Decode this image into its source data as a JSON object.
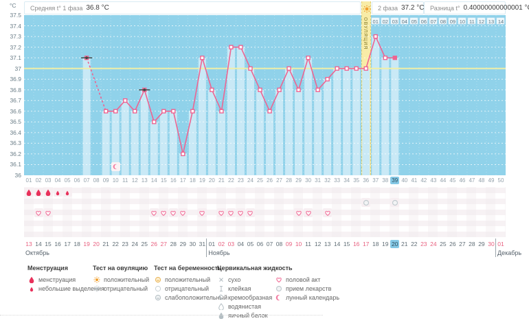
{
  "header": {
    "unit": "°C",
    "phase1_label": "Средняя t° 1 фаза",
    "phase1_value": "36.8 °C",
    "phase2_label": "2 фаза",
    "phase2_value": "37.2 °C",
    "diff_label": "Разница t°",
    "diff_value": "0.40000000000001 °C"
  },
  "chart_data": {
    "type": "line",
    "title": "",
    "xlabel": "",
    "ylabel": "°C",
    "ylim": [
      36,
      37.5
    ],
    "ytick_step": 0.1,
    "yticks": [
      "37.5",
      "37.4",
      "37.3",
      "37.2",
      "37.1",
      "37",
      "36.9",
      "36.8",
      "36.7",
      "36.6",
      "36.5",
      "36.4",
      "36.3",
      "36.2",
      "36.1",
      "36"
    ],
    "x_days": 50,
    "grid": "dashed-horizontal",
    "normal_line": 37,
    "ovulation_day": 36,
    "ovulation_label": "ОВУЛЯЦИЯ",
    "today_day": 39,
    "moon_day": 10,
    "phase2_start_day": 37,
    "phase2_labels": [
      "01",
      "02",
      "03",
      "04",
      "05",
      "06",
      "07",
      "08",
      "09",
      "10",
      "11",
      "12",
      "13",
      "14"
    ],
    "points": [
      {
        "day": 7,
        "t": 37.1,
        "excluded": true
      },
      {
        "day": 9,
        "t": 36.6
      },
      {
        "day": 10,
        "t": 36.6
      },
      {
        "day": 11,
        "t": 36.7
      },
      {
        "day": 12,
        "t": 36.6
      },
      {
        "day": 13,
        "t": 36.8,
        "excluded": true
      },
      {
        "day": 14,
        "t": 36.5
      },
      {
        "day": 15,
        "t": 36.6
      },
      {
        "day": 16,
        "t": 36.6
      },
      {
        "day": 17,
        "t": 36.2
      },
      {
        "day": 18,
        "t": 36.6
      },
      {
        "day": 19,
        "t": 37.1
      },
      {
        "day": 20,
        "t": 36.8
      },
      {
        "day": 21,
        "t": 36.6
      },
      {
        "day": 22,
        "t": 37.2
      },
      {
        "day": 23,
        "t": 37.2
      },
      {
        "day": 24,
        "t": 37
      },
      {
        "day": 25,
        "t": 36.8
      },
      {
        "day": 26,
        "t": 36.6
      },
      {
        "day": 27,
        "t": 36.8
      },
      {
        "day": 28,
        "t": 37
      },
      {
        "day": 29,
        "t": 36.8
      },
      {
        "day": 30,
        "t": 37.1
      },
      {
        "day": 31,
        "t": 36.8
      },
      {
        "day": 32,
        "t": 36.9
      },
      {
        "day": 33,
        "t": 37
      },
      {
        "day": 34,
        "t": 37
      },
      {
        "day": 35,
        "t": 37
      },
      {
        "day": 36,
        "t": 37
      },
      {
        "day": 37,
        "t": 37.3
      },
      {
        "day": 38,
        "t": 37.1
      },
      {
        "day": 39,
        "t": 37.1,
        "today": true
      }
    ]
  },
  "cycle_days": [
    "01",
    "02",
    "03",
    "04",
    "05",
    "06",
    "07",
    "08",
    "09",
    "10",
    "11",
    "12",
    "13",
    "14",
    "15",
    "16",
    "17",
    "18",
    "19",
    "20",
    "21",
    "22",
    "23",
    "24",
    "25",
    "26",
    "27",
    "28",
    "29",
    "30",
    "31",
    "32",
    "33",
    "34",
    "35",
    "36",
    "37",
    "38",
    "39",
    "40",
    "41",
    "42",
    "43",
    "44",
    "45",
    "46",
    "47",
    "48",
    "49",
    "50"
  ],
  "markers": {
    "menstruation_days": [
      1,
      2,
      3
    ],
    "spotting_days": [
      4,
      5
    ],
    "pill_days": [
      36,
      39
    ],
    "intercourse_days": [
      2,
      3,
      14,
      15,
      16,
      17,
      19,
      21,
      22,
      23,
      24,
      29,
      30,
      32
    ]
  },
  "calendar": {
    "dates": [
      {
        "d": "13",
        "red": true
      },
      {
        "d": "14"
      },
      {
        "d": "15"
      },
      {
        "d": "16"
      },
      {
        "d": "17"
      },
      {
        "d": "18"
      },
      {
        "d": "19",
        "red": true
      },
      {
        "d": "20",
        "red": true
      },
      {
        "d": "21"
      },
      {
        "d": "22"
      },
      {
        "d": "23"
      },
      {
        "d": "24"
      },
      {
        "d": "25"
      },
      {
        "d": "26",
        "red": true
      },
      {
        "d": "27",
        "red": true
      },
      {
        "d": "28"
      },
      {
        "d": "29"
      },
      {
        "d": "30"
      },
      {
        "d": "31"
      },
      {
        "d": "01"
      },
      {
        "d": "02",
        "red": true
      },
      {
        "d": "03",
        "red": true
      },
      {
        "d": "04"
      },
      {
        "d": "05"
      },
      {
        "d": "06"
      },
      {
        "d": "07"
      },
      {
        "d": "08"
      },
      {
        "d": "09",
        "red": true
      },
      {
        "d": "10",
        "red": true
      },
      {
        "d": "11"
      },
      {
        "d": "12"
      },
      {
        "d": "13"
      },
      {
        "d": "14"
      },
      {
        "d": "15"
      },
      {
        "d": "16",
        "red": true
      },
      {
        "d": "17",
        "red": true
      },
      {
        "d": "18"
      },
      {
        "d": "19"
      },
      {
        "d": "20",
        "today": true
      },
      {
        "d": "21"
      },
      {
        "d": "22"
      },
      {
        "d": "23",
        "red": true
      },
      {
        "d": "24",
        "red": true
      },
      {
        "d": "25"
      },
      {
        "d": "26"
      },
      {
        "d": "27"
      },
      {
        "d": "28"
      },
      {
        "d": "29"
      },
      {
        "d": "30",
        "red": true
      },
      {
        "d": "01",
        "red": true
      }
    ],
    "months": [
      {
        "name": "Октябрь",
        "start": 0
      },
      {
        "name": "Ноябрь",
        "start": 19
      },
      {
        "name": "Декабрь",
        "start": 49
      }
    ]
  },
  "legend": {
    "columns": [
      {
        "title": "Менструация",
        "items": [
          {
            "icon": "drop",
            "label": "менструация"
          },
          {
            "icon": "drop-small",
            "label": "небольшие выделения"
          }
        ]
      },
      {
        "title": "Тест на овуляцию",
        "items": [
          {
            "icon": "sun-orange",
            "label": "положительный"
          },
          {
            "icon": "sun-gray",
            "label": "отрицательный"
          }
        ]
      },
      {
        "title": "Тест на беременность",
        "items": [
          {
            "icon": "circle-orange",
            "label": "положительный"
          },
          {
            "icon": "circle-outline",
            "label": "отрицательный"
          },
          {
            "icon": "circle-gray",
            "label": "слабоположительный"
          }
        ]
      },
      {
        "title": "Цервикальная жидкость",
        "items": [
          {
            "icon": "x",
            "label": "сухо"
          },
          {
            "icon": "sticky",
            "label": "клейкая"
          },
          {
            "icon": "creamy",
            "label": "кремообразная"
          },
          {
            "icon": "watery",
            "label": "водянистая"
          },
          {
            "icon": "eggwhite",
            "label": "яичный белок"
          }
        ]
      },
      {
        "title": "",
        "items": [
          {
            "icon": "heart",
            "label": "половой акт"
          },
          {
            "icon": "pill",
            "label": "прием лекарств"
          },
          {
            "icon": "moon",
            "label": "лунный календарь"
          }
        ]
      }
    ]
  },
  "colors": {
    "chart_bg": "#90d2ea",
    "bar": "#c9e9f6",
    "line": "#ee6491",
    "grid": "#ffffff",
    "line37": "#f2efa4",
    "ovulation_band": "#f8eca7",
    "ovulation_text": "#a89e52",
    "today_highlight": "#85c9e6",
    "weekend_red": "#e8607f",
    "menses_red": "#e8315b",
    "heart_pink": "#f27ba1",
    "gray_icon": "#b4bec3",
    "orange": "#f0a030",
    "excluded": "#454545"
  }
}
